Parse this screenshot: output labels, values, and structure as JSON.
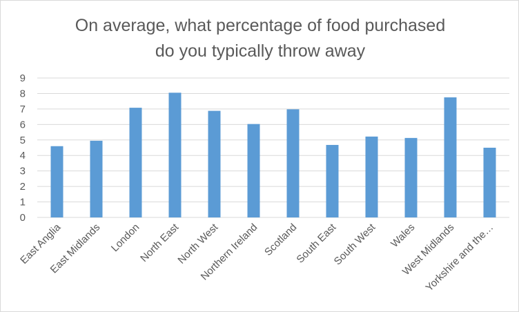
{
  "chart_data": {
    "type": "bar",
    "title_line1": "On average, what percentage of food purchased",
    "title_line2": "do you typically throw away",
    "categories": [
      "East Anglia",
      "East Midlands",
      "London",
      "North East",
      "North West",
      "Northern Ireland",
      "Scotland",
      "South East",
      "South West",
      "Wales",
      "West Midlands",
      "Yorkshire and the…"
    ],
    "values": [
      4.6,
      4.95,
      7.08,
      8.05,
      6.88,
      6.03,
      6.98,
      4.68,
      5.22,
      5.13,
      7.75,
      4.5
    ],
    "ylim": [
      0,
      9
    ],
    "yticks": [
      "0",
      "1",
      "2",
      "3",
      "4",
      "5",
      "6",
      "7",
      "8",
      "9"
    ],
    "grid": true,
    "legend": "none",
    "bar_color": "#5b9bd5",
    "grid_color": "#d9d9d9"
  }
}
